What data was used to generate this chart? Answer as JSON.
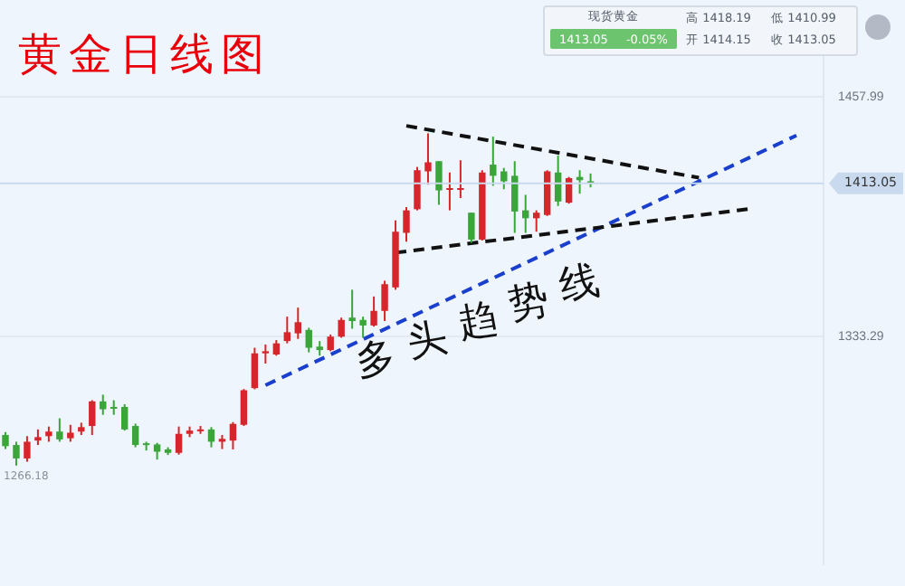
{
  "chart_data": {
    "type": "candlestick",
    "title": "黄金日线图",
    "categories": [
      null,
      null,
      null,
      null,
      null,
      null,
      null,
      null,
      null,
      null,
      null,
      null,
      null,
      null,
      null,
      null,
      null,
      null,
      null,
      null,
      null,
      null,
      null,
      null,
      null,
      null,
      null,
      null,
      null,
      null,
      null,
      null,
      null,
      null,
      null,
      null,
      null,
      null,
      null,
      null,
      null,
      null,
      null,
      null,
      null,
      null,
      null,
      null,
      null,
      null,
      null,
      null,
      null,
      null,
      null,
      null,
      null,
      null,
      null,
      null,
      null,
      null,
      null,
      null,
      null,
      null,
      null,
      null,
      null,
      null,
      null,
      null,
      null,
      null,
      null,
      null
    ],
    "ohlc": [
      [
        1282.1,
        1283.6,
        1274.8,
        1276.3
      ],
      [
        1276.9,
        1278.6,
        1266.18,
        1269.9
      ],
      [
        1269.9,
        1281.5,
        1268.2,
        1278.6
      ],
      [
        1279.2,
        1285.0,
        1276.9,
        1281.0
      ],
      [
        1281.5,
        1286.5,
        1278.6,
        1283.9
      ],
      [
        1283.9,
        1290.8,
        1278.6,
        1279.8
      ],
      [
        1280.4,
        1287.4,
        1278.6,
        1283.3
      ],
      [
        1283.9,
        1288.5,
        1282.1,
        1286.2
      ],
      [
        1286.8,
        1300.2,
        1282.1,
        1299.6
      ],
      [
        1299.6,
        1303.1,
        1292.6,
        1295.5
      ],
      [
        1296.7,
        1300.2,
        1292.6,
        1295.8
      ],
      [
        1296.7,
        1298.1,
        1284.4,
        1285.0
      ],
      [
        1286.8,
        1288.0,
        1275.7,
        1276.9
      ],
      [
        1277.8,
        1278.6,
        1274.0,
        1276.9
      ],
      [
        1277.2,
        1278.0,
        1269.3,
        1273.4
      ],
      [
        1274.6,
        1275.7,
        1271.7,
        1272.8
      ],
      [
        1272.8,
        1286.5,
        1271.9,
        1282.7
      ],
      [
        1282.7,
        1286.5,
        1281.0,
        1284.4
      ],
      [
        1284.1,
        1286.8,
        1282.7,
        1285.0
      ],
      [
        1285.0,
        1286.2,
        1275.7,
        1278.6
      ],
      [
        1278.6,
        1282.1,
        1274.8,
        1280.1
      ],
      [
        1279.2,
        1288.8,
        1274.6,
        1287.9
      ],
      [
        1287.4,
        1306.0,
        1286.8,
        1305.4
      ],
      [
        1306.5,
        1327.5,
        1305.9,
        1324.6
      ],
      [
        1324.6,
        1329.2,
        1319.3,
        1325.7
      ],
      [
        1324.0,
        1331.5,
        1323.4,
        1329.8
      ],
      [
        1331.0,
        1343.7,
        1329.8,
        1335.6
      ],
      [
        1335.0,
        1348.4,
        1332.1,
        1340.8
      ],
      [
        1336.8,
        1337.9,
        1325.1,
        1327.5
      ],
      [
        1328.1,
        1331.0,
        1323.4,
        1326.3
      ],
      [
        1326.3,
        1334.4,
        1325.7,
        1333.3
      ],
      [
        1333.3,
        1343.2,
        1332.7,
        1342.0
      ],
      [
        1343.2,
        1357.7,
        1337.4,
        1341.4
      ],
      [
        1342.0,
        1343.7,
        1332.7,
        1339.1
      ],
      [
        1339.1,
        1354.2,
        1338.5,
        1346.7
      ],
      [
        1346.7,
        1362.4,
        1341.4,
        1360.6
      ],
      [
        1358.9,
        1393.8,
        1357.7,
        1387.9
      ],
      [
        1387.3,
        1400.7,
        1382.7,
        1399.0
      ],
      [
        1399.6,
        1421.6,
        1399.0,
        1419.9
      ],
      [
        1419.3,
        1439.1,
        1412.4,
        1424.0
      ],
      [
        1424.6,
        1424.6,
        1401.9,
        1409.4
      ],
      [
        1409.7,
        1418.7,
        1399.0,
        1410.6
      ],
      [
        1409.7,
        1425.1,
        1405.4,
        1410.6
      ],
      [
        1397.8,
        1397.8,
        1382.1,
        1383.8
      ],
      [
        1383.8,
        1419.9,
        1383.3,
        1418.7
      ],
      [
        1422.8,
        1437.4,
        1411.8,
        1417.0
      ],
      [
        1419.3,
        1421.1,
        1410.0,
        1414.1
      ],
      [
        1417.0,
        1424.6,
        1387.3,
        1398.4
      ],
      [
        1399.0,
        1407.1,
        1387.3,
        1394.9
      ],
      [
        1394.9,
        1399.0,
        1387.9,
        1397.8
      ],
      [
        1396.6,
        1419.9,
        1396.1,
        1419.3
      ],
      [
        1418.7,
        1427.5,
        1401.3,
        1403.6
      ],
      [
        1403.0,
        1416.4,
        1402.5,
        1415.8
      ],
      [
        1416.4,
        1419.9,
        1407.7,
        1414.7
      ],
      [
        1414.15,
        1418.19,
        1410.99,
        1413.05
      ],
      null,
      null,
      null,
      null,
      null,
      null,
      null,
      null,
      null,
      null,
      null,
      null,
      null,
      null,
      null,
      null,
      null,
      null,
      null,
      null,
      null
    ],
    "colors": [
      "#3aa63a",
      "#3aa63a",
      "#d7262b",
      "#d7262b",
      "#d7262b",
      "#3aa63a",
      "#d7262b",
      "#d7262b",
      "#d7262b",
      "#3aa63a",
      "#3aa63a",
      "#3aa63a",
      "#3aa63a",
      "#3aa63a",
      "#3aa63a",
      "#3aa63a",
      "#d7262b",
      "#d7262b",
      "#d7262b",
      "#3aa63a",
      "#d7262b",
      "#d7262b",
      "#d7262b",
      "#d7262b",
      "#d7262b",
      "#d7262b",
      "#d7262b",
      "#d7262b",
      "#3aa63a",
      "#3aa63a",
      "#d7262b",
      "#d7262b",
      "#3aa63a",
      "#3aa63a",
      "#d7262b",
      "#d7262b",
      "#d7262b",
      "#d7262b",
      "#d7262b",
      "#d7262b",
      "#3aa63a",
      "#d7262b",
      "#d7262b",
      "#3aa63a",
      "#d7262b",
      "#3aa63a",
      "#3aa63a",
      "#3aa63a",
      "#3aa63a",
      "#d7262b",
      "#d7262b",
      "#3aa63a",
      "#d7262b",
      "#3aa63a",
      "#3aa63a",
      null,
      null,
      null,
      null,
      null,
      null,
      null,
      null,
      null,
      null,
      null,
      null,
      null,
      null,
      null,
      null,
      null,
      null,
      null,
      null,
      null
    ],
    "series": [
      {
        "type": "line",
        "color": "#111111",
        "line_style": "dashed",
        "values": [
          null,
          null,
          null,
          null,
          null,
          null,
          null,
          null,
          null,
          null,
          null,
          null,
          null,
          null,
          null,
          null,
          null,
          null,
          null,
          null,
          null,
          null,
          null,
          null,
          null,
          null,
          null,
          null,
          null,
          null,
          null,
          null,
          null,
          null,
          null,
          null,
          null,
          1443,
          null,
          null,
          null,
          null,
          null,
          null,
          null,
          null,
          null,
          null,
          null,
          null,
          null,
          null,
          null,
          null,
          null,
          null,
          null,
          null,
          null,
          null,
          null,
          null,
          null,
          null,
          1416,
          null,
          null,
          null,
          null,
          null,
          null,
          null,
          null,
          null,
          null,
          null
        ]
      },
      {
        "type": "line",
        "color": "#111111",
        "line_style": "dashed",
        "values": [
          null,
          null,
          null,
          null,
          null,
          null,
          null,
          null,
          null,
          null,
          null,
          null,
          null,
          null,
          null,
          null,
          null,
          null,
          null,
          null,
          null,
          null,
          null,
          null,
          null,
          null,
          null,
          null,
          null,
          null,
          null,
          null,
          null,
          null,
          null,
          null,
          1377,
          null,
          null,
          null,
          null,
          null,
          null,
          null,
          null,
          null,
          null,
          null,
          null,
          null,
          null,
          null,
          null,
          null,
          null,
          null,
          null,
          null,
          null,
          null,
          null,
          null,
          null,
          null,
          null,
          null,
          null,
          null,
          null,
          1400,
          null,
          null,
          null,
          null,
          null,
          null
        ]
      },
      {
        "type": "line",
        "color": "#1a3fcc",
        "line_style": "dashed",
        "values": [
          null,
          null,
          null,
          null,
          null,
          null,
          null,
          null,
          null,
          null,
          null,
          null,
          null,
          null,
          null,
          null,
          null,
          null,
          null,
          null,
          null,
          null,
          null,
          null,
          1308,
          null,
          null,
          null,
          null,
          null,
          null,
          null,
          null,
          null,
          null,
          null,
          null,
          null,
          null,
          null,
          null,
          null,
          null,
          null,
          null,
          null,
          null,
          null,
          null,
          null,
          null,
          null,
          null,
          null,
          null,
          null,
          null,
          null,
          null,
          null,
          null,
          null,
          null,
          null,
          null,
          null,
          null,
          null,
          null,
          null,
          null,
          null,
          null,
          1438,
          null,
          null
        ]
      }
    ],
    "marker": "none",
    "ylim": [
      1215,
      1497
    ],
    "yticks": [
      1457.99,
      1333.29
    ],
    "grid": "y",
    "ref_lines": [
      {
        "axis": "y",
        "value": 1413.05,
        "label": "1413.05",
        "color": "#c9d9ee"
      }
    ],
    "annotations": [
      "现货黄金",
      "1413.05",
      "-0.05%",
      "高 1418.19",
      "低 1410.99",
      "开 1414.15",
      "收 1413.05",
      "多头趋势线",
      {
        "text": "1266.18",
        "y": 1266.18
      }
    ]
  }
}
